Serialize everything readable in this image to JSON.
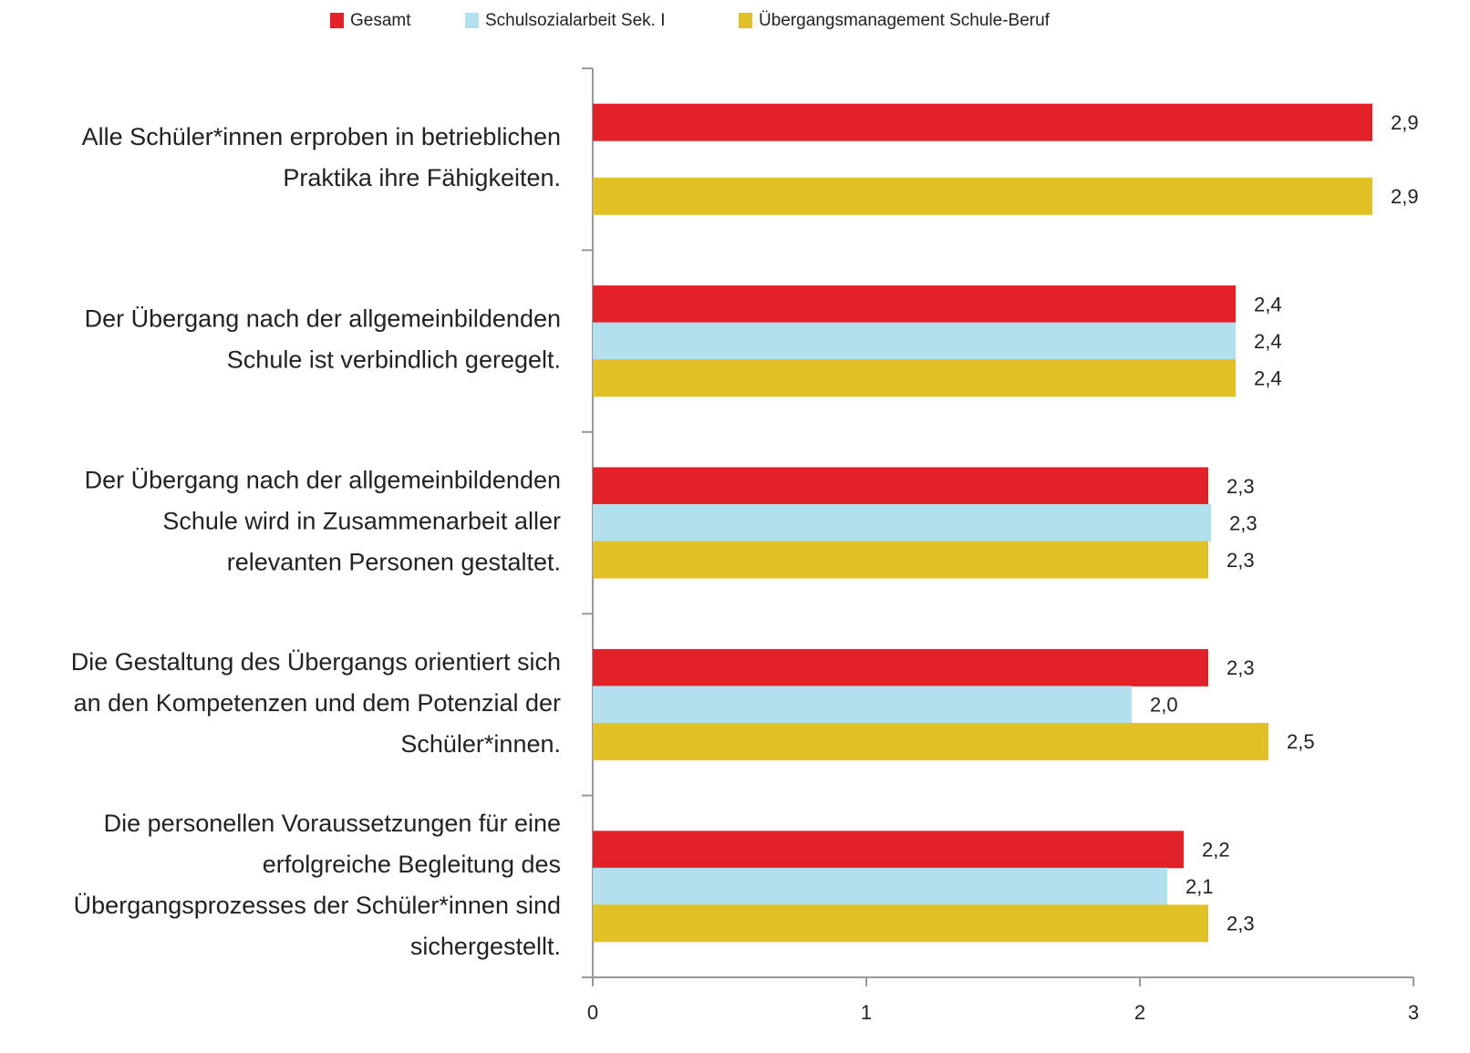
{
  "chart_data": {
    "type": "hbar",
    "categories": [
      [
        "Alle Schüler*innen erproben in betrieblichen",
        "Praktika ihre Fähigkeiten."
      ],
      [
        "Der Übergang nach der allgemeinbildenden",
        "Schule ist verbindlich geregelt."
      ],
      [
        "Der Übergang nach der allgemeinbildenden",
        "Schule wird in Zusammenarbeit aller",
        "relevanten Personen gestaltet."
      ],
      [
        "Die Gestaltung des Übergangs orientiert sich",
        "an den Kompetenzen und dem Potenzial der",
        "Schüler*innen."
      ],
      [
        "Die personellen Voraussetzungen für eine",
        "erfolgreiche Begleitung des",
        "Übergangsprozesses der Schüler*innen sind",
        "sichergestellt."
      ]
    ],
    "series": [
      {
        "name": "Gesamt",
        "color": "#e32129",
        "values": [
          2.85,
          2.35,
          2.25,
          2.25,
          2.16
        ],
        "value_labels": [
          "2,9",
          "2,4",
          "2,3",
          "2,3",
          "2,2"
        ]
      },
      {
        "name": "Schulsozialarbeit Sek. I",
        "color": "#b3e0ee",
        "values": [
          null,
          2.35,
          2.26,
          1.97,
          2.1
        ],
        "value_labels": [
          null,
          "2,4",
          "2,3",
          "2,0",
          "2,1"
        ]
      },
      {
        "name": "Übergangsmanagement Schule-Beruf",
        "color": "#e1c125",
        "values": [
          2.85,
          2.35,
          2.25,
          2.47,
          2.25
        ],
        "value_labels": [
          "2,9",
          "2,4",
          "2,3",
          "2,5",
          "2,3"
        ]
      }
    ],
    "xlim": [
      0,
      3
    ],
    "xticks": [
      0,
      1,
      2,
      3
    ]
  }
}
